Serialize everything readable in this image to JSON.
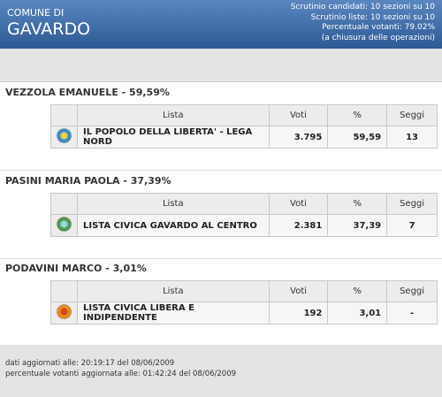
{
  "header": {
    "pre_title": "COMUNE DI",
    "title": "GAVARDO",
    "info": [
      "Scrutinio candidati: 10 sezioni su 10",
      "Scrutinio liste: 10 sezioni su 10",
      "Percentuale votanti: 79.02%",
      "(a chiusura delle operazioni)"
    ]
  },
  "columns": [
    "Lista",
    "Voti",
    "%",
    "Seggi"
  ],
  "candidates": [
    {
      "heading": "VEZZOLA EMANUELE - 59,59%",
      "row": [
        "IL POPOLO DELLA LIBERTA' - LEGA NORD",
        "3.795",
        "59,59",
        "13"
      ]
    },
    {
      "heading": "PASINI MARIA PAOLA - 37,39%",
      "row": [
        "LISTA CIVICA GAVARDO AL CENTRO",
        "2.381",
        "37,39",
        "7"
      ]
    },
    {
      "heading": "PODAVINI MARCO - 3,01%",
      "row": [
        "LISTA CIVICA LIBERA E INDIPENDENTE",
        "192",
        "3,01",
        "-"
      ]
    }
  ],
  "footer": [
    "dati aggiornati alle: 20:19:17 del 08/06/2009",
    "percentuale votanti aggiornata alle: 01:42:24 del 08/06/2009"
  ]
}
